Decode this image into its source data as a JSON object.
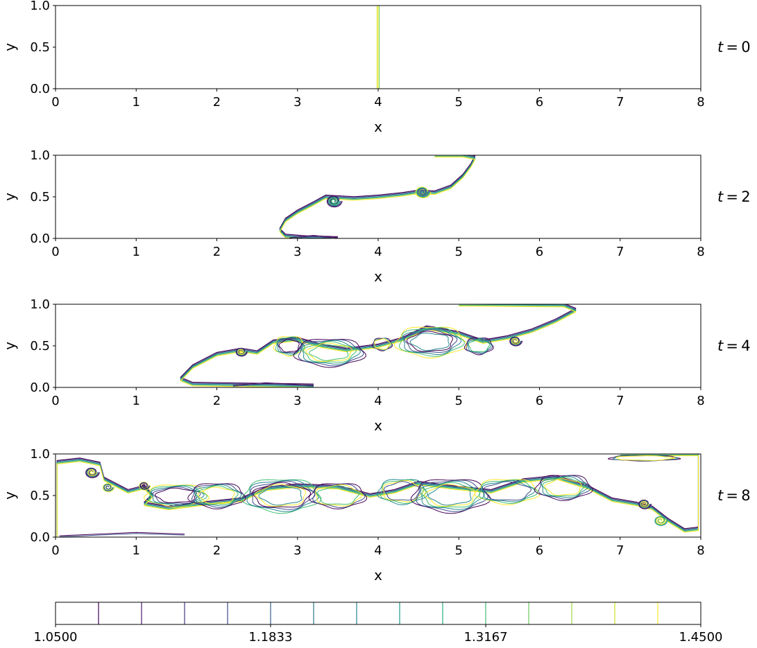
{
  "chart_data": {
    "type": "contour",
    "panels": [
      {
        "time_label": "t = 0",
        "time_var": "t",
        "time_value": "0",
        "xlabel": "x",
        "ylabel": "y",
        "xlim": [
          0,
          8
        ],
        "ylim": [
          0,
          1
        ],
        "xticks": [
          "0",
          "1",
          "2",
          "3",
          "4",
          "5",
          "6",
          "7",
          "8"
        ],
        "yticks": [
          "0.0",
          "0.5",
          "1.0"
        ],
        "description": "vertical interface at x = 4"
      },
      {
        "time_label": "t = 2",
        "time_var": "t",
        "time_value": "2",
        "xlabel": "x",
        "ylabel": "y",
        "xlim": [
          0,
          8
        ],
        "ylim": [
          0,
          1
        ],
        "xticks": [
          "0",
          "1",
          "2",
          "3",
          "4",
          "5",
          "6",
          "7",
          "8"
        ],
        "yticks": [
          "0.0",
          "0.5",
          "1.0"
        ]
      },
      {
        "time_label": "t = 4",
        "time_var": "t",
        "time_value": "4",
        "xlabel": "x",
        "ylabel": "y",
        "xlim": [
          0,
          8
        ],
        "ylim": [
          0,
          1
        ],
        "xticks": [
          "0",
          "1",
          "2",
          "3",
          "4",
          "5",
          "6",
          "7",
          "8"
        ],
        "yticks": [
          "0.0",
          "0.5",
          "1.0"
        ]
      },
      {
        "time_label": "t = 8",
        "time_var": "t",
        "time_value": "8",
        "xlabel": "x",
        "ylabel": "y",
        "xlim": [
          0,
          8
        ],
        "ylim": [
          0,
          1
        ],
        "xticks": [
          "0",
          "1",
          "2",
          "3",
          "4",
          "5",
          "6",
          "7",
          "8"
        ],
        "yticks": [
          "0.0",
          "0.5",
          "1.0"
        ]
      }
    ],
    "colorbar": {
      "min": 1.05,
      "max": 1.45,
      "levels": 15,
      "colormap": "viridis",
      "tick_labels": [
        "1.0500",
        "1.1833",
        "1.3167",
        "1.4500"
      ],
      "tick_values": [
        1.05,
        1.1833,
        1.3167,
        1.45
      ],
      "level_colors": [
        "#440154",
        "#481c6e",
        "#453781",
        "#3d4d8a",
        "#34618d",
        "#2b748e",
        "#24878e",
        "#1f998a",
        "#25ac82",
        "#40bd72",
        "#67cc5c",
        "#98d83e",
        "#cde11d",
        "#fde725"
      ]
    }
  }
}
